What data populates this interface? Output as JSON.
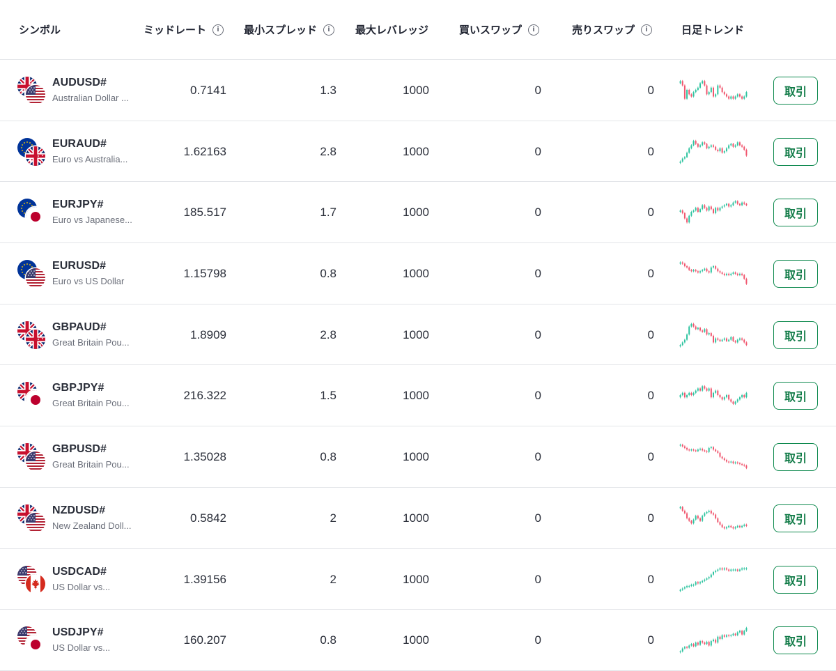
{
  "headers": {
    "symbol": "シンボル",
    "mid_rate": "ミッドレート",
    "min_spread": "最小スプレッド",
    "max_leverage": "最大レバレッジ",
    "buy_swap": "買いスワップ",
    "sell_swap": "売りスワップ",
    "daily_trend": "日足トレンド",
    "info_glyph": "i"
  },
  "colors": {
    "up": "#2ec4a0",
    "down": "#f0566e",
    "trade_button": "#0f8a4f"
  },
  "rows": [
    {
      "symbol": "AUDUSD#",
      "description": "Australian Dollar ...",
      "flags": [
        "au",
        "us"
      ],
      "mid_rate": "0.7141",
      "min_spread": "1.3",
      "max_leverage": "1000",
      "buy_swap": "0",
      "sell_swap": "0",
      "trade_label": "取引",
      "trend_closes": [
        10,
        12,
        18,
        14,
        16,
        17,
        15,
        14,
        13,
        11,
        10,
        12,
        16,
        15,
        13,
        17,
        16,
        12,
        13,
        15,
        16,
        17,
        18,
        17,
        18,
        17,
        16,
        17,
        18,
        17,
        15
      ]
    },
    {
      "symbol": "EURAUD#",
      "description": "Euro vs Australia...",
      "flags": [
        "eu",
        "au"
      ],
      "mid_rate": "1.62163",
      "min_spread": "2.8",
      "max_leverage": "1000",
      "buy_swap": "0",
      "sell_swap": "0",
      "trade_label": "取引",
      "trend_closes": [
        22,
        20,
        19,
        16,
        13,
        11,
        8,
        10,
        12,
        11,
        9,
        10,
        13,
        12,
        11,
        12,
        14,
        15,
        13,
        16,
        15,
        13,
        11,
        10,
        12,
        11,
        9,
        11,
        12,
        14,
        18
      ]
    },
    {
      "symbol": "EURJPY#",
      "description": "Euro vs Japanese...",
      "flags": [
        "eu",
        "jp"
      ],
      "mid_rate": "185.517",
      "min_spread": "1.7",
      "max_leverage": "1000",
      "buy_swap": "0",
      "sell_swap": "0",
      "trade_label": "取引",
      "trend_closes": [
        14,
        16,
        20,
        23,
        18,
        15,
        14,
        12,
        15,
        13,
        10,
        12,
        14,
        11,
        13,
        16,
        12,
        14,
        12,
        11,
        10,
        9,
        11,
        10,
        8,
        7,
        9,
        10,
        8,
        9,
        10
      ]
    },
    {
      "symbol": "EURUSD#",
      "description": "Euro vs US Dollar",
      "flags": [
        "eu",
        "us"
      ],
      "mid_rate": "1.15798",
      "min_spread": "0.8",
      "max_leverage": "1000",
      "buy_swap": "0",
      "sell_swap": "0",
      "trade_label": "取引",
      "trend_closes": [
        5,
        6,
        8,
        9,
        11,
        12,
        11,
        12,
        13,
        12,
        11,
        10,
        12,
        13,
        9,
        8,
        10,
        12,
        13,
        14,
        15,
        14,
        15,
        14,
        13,
        14,
        15,
        14,
        15,
        18,
        22
      ]
    },
    {
      "symbol": "GBPAUD#",
      "description": "Great Britain Pou...",
      "flags": [
        "gb",
        "au"
      ],
      "mid_rate": "1.8909",
      "min_spread": "2.8",
      "max_leverage": "1000",
      "buy_swap": "0",
      "sell_swap": "0",
      "trade_label": "取引",
      "trend_closes": [
        24,
        22,
        20,
        16,
        10,
        8,
        10,
        12,
        11,
        13,
        14,
        12,
        16,
        15,
        17,
        22,
        19,
        20,
        21,
        20,
        19,
        21,
        20,
        18,
        21,
        22,
        20,
        19,
        20,
        22,
        24
      ]
    },
    {
      "symbol": "GBPJPY#",
      "description": "Great Britain Pou...",
      "flags": [
        "gb",
        "jp"
      ],
      "mid_rate": "216.322",
      "min_spread": "1.5",
      "max_leverage": "1000",
      "buy_swap": "0",
      "sell_swap": "0",
      "trade_label": "取引",
      "trend_closes": [
        15,
        14,
        16,
        15,
        14,
        15,
        14,
        13,
        12,
        13,
        11,
        12,
        13,
        12,
        16,
        14,
        13,
        15,
        16,
        17,
        16,
        15,
        17,
        18,
        19,
        18,
        17,
        16,
        15,
        16,
        14
      ]
    },
    {
      "symbol": "GBPUSD#",
      "description": "Great Britain Pou...",
      "flags": [
        "gb",
        "us"
      ],
      "mid_rate": "1.35028",
      "min_spread": "0.8",
      "max_leverage": "1000",
      "buy_swap": "0",
      "sell_swap": "0",
      "trade_label": "取引",
      "trend_closes": [
        5,
        7,
        9,
        11,
        12,
        11,
        12,
        13,
        11,
        10,
        12,
        13,
        14,
        9,
        8,
        11,
        13,
        15,
        20,
        22,
        24,
        26,
        27,
        26,
        28,
        27,
        28,
        29,
        30,
        31,
        34
      ]
    },
    {
      "symbol": "NZDUSD#",
      "description": "New Zealand Doll...",
      "flags": [
        "nz",
        "us"
      ],
      "mid_rate": "0.5842",
      "min_spread": "2",
      "max_leverage": "1000",
      "buy_swap": "0",
      "sell_swap": "0",
      "trade_label": "取引",
      "trend_closes": [
        5,
        8,
        10,
        14,
        16,
        18,
        15,
        12,
        14,
        16,
        12,
        10,
        9,
        8,
        10,
        11,
        14,
        17,
        19,
        21,
        22,
        21,
        20,
        21,
        22,
        21,
        20,
        21,
        20,
        19,
        20
      ]
    },
    {
      "symbol": "USDCAD#",
      "description": "US Dollar vs...",
      "flags": [
        "us",
        "ca"
      ],
      "mid_rate": "1.39156",
      "min_spread": "2",
      "max_leverage": "1000",
      "buy_swap": "0",
      "sell_swap": "0",
      "trade_label": "取引",
      "trend_closes": [
        24,
        23,
        22,
        21,
        21,
        20,
        20,
        18,
        19,
        18,
        17,
        16,
        15,
        14,
        12,
        10,
        9,
        8,
        7,
        8,
        7,
        8,
        9,
        8,
        8,
        8,
        9,
        8,
        7,
        7,
        7
      ]
    },
    {
      "symbol": "USDJPY#",
      "description": "US Dollar vs...",
      "flags": [
        "us",
        "jp"
      ],
      "mid_rate": "160.207",
      "min_spread": "0.8",
      "max_leverage": "1000",
      "buy_swap": "0",
      "sell_swap": "0",
      "trade_label": "取引",
      "trend_closes": [
        34,
        30,
        28,
        29,
        26,
        24,
        27,
        22,
        25,
        20,
        22,
        24,
        21,
        26,
        20,
        18,
        22,
        14,
        17,
        12,
        14,
        12,
        13,
        12,
        10,
        12,
        8,
        6,
        11,
        6,
        2
      ]
    }
  ]
}
